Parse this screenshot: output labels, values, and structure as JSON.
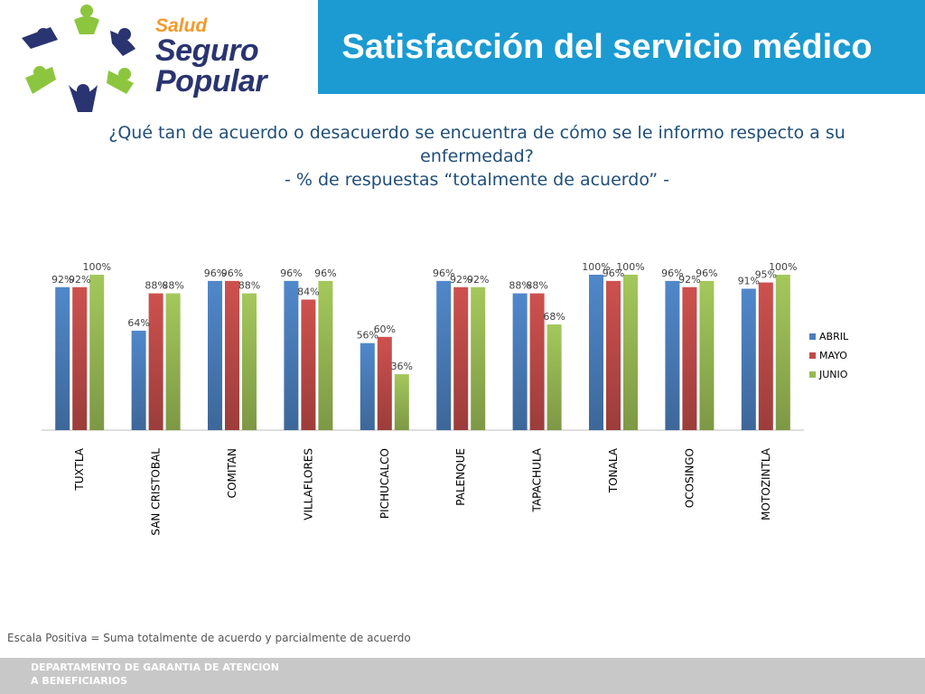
{
  "header": {
    "logo": {
      "line1": "Salud",
      "line2": "Seguro",
      "line3": "Popular",
      "colors": {
        "orange": "#f39a2b",
        "navy": "#2a3470",
        "green": "#8cc63e"
      }
    },
    "title": "Satisfacción del servicio médico",
    "title_bg": "#1b9bd1"
  },
  "question": {
    "line1": "¿Qué tan de acuerdo o desacuerdo se encuentra de cómo  se le informo respecto a su",
    "line2": "enfermedad?",
    "line3": "- % de respuestas “totalmente de acuerdo” -",
    "color": "#1f4e79"
  },
  "chart_data": {
    "type": "bar",
    "categories": [
      "TUXTLA",
      "SAN CRISTOBAL",
      "COMITAN",
      "VILLAFLORES",
      "PICHUCALCO",
      "PALENQUE",
      "TAPACHULA",
      "TONALA",
      "OCOSINGO",
      "MOTOZINTLA"
    ],
    "series": [
      {
        "name": "ABRIL",
        "values": [
          92,
          64,
          96,
          96,
          56,
          96,
          88,
          100,
          96,
          91
        ],
        "labels": [
          "92%",
          "64%",
          "96%",
          "96%",
          "56%",
          "96%",
          "88%",
          "100%",
          "96%",
          "91%"
        ],
        "color": "#4a7ebb"
      },
      {
        "name": "MAYO",
        "values": [
          92,
          88,
          96,
          84,
          60,
          92,
          88,
          96,
          92,
          95
        ],
        "labels": [
          "92%",
          "88%",
          "96%",
          "84%",
          "60%",
          "92%",
          "88%",
          "96%",
          "92%",
          "95%"
        ],
        "color": "#be4b48"
      },
      {
        "name": "JUNIO",
        "values": [
          100,
          88,
          88,
          96,
          36,
          92,
          68,
          100,
          96,
          100
        ],
        "labels": [
          "100%",
          "88%",
          "88%",
          "96%",
          "36%",
          "92%",
          "68%",
          "100%",
          "96%",
          "100%"
        ],
        "color": "#98b954"
      }
    ],
    "ylim": [
      0,
      100
    ],
    "grid": false,
    "legend": "right"
  },
  "footnote": "Escala Positiva = Suma totalmente de acuerdo y parcialmente de acuerdo",
  "footer": {
    "line1": "DEPARTAMENTO DE GARANTIA DE ATENCION",
    "line2": "A BENEFICIARIOS"
  }
}
